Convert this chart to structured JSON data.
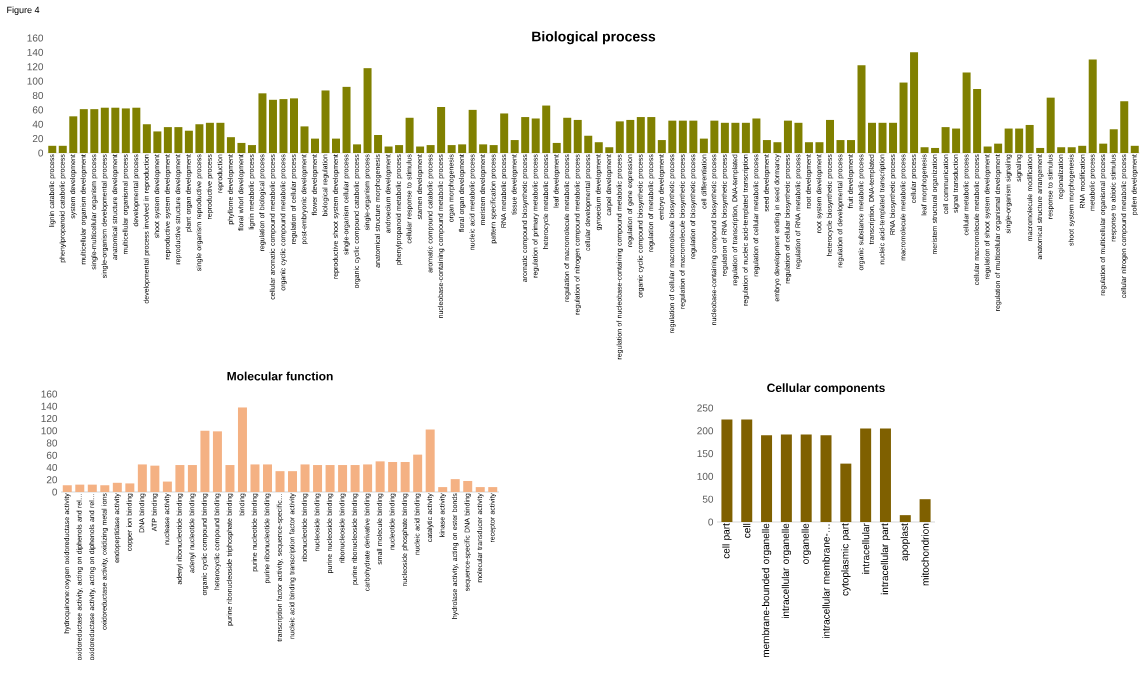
{
  "chart_data": [
    {
      "type": "bar",
      "title": "Biological process",
      "annotations": [
        "Figure 4"
      ],
      "color": "#808000",
      "ylim": [
        0,
        160
      ],
      "yticks": [
        0,
        20,
        40,
        60,
        80,
        100,
        120,
        140,
        160
      ],
      "categories": [
        "lignin catabolic process",
        "phenylpropanoid catabolic process",
        "system development",
        "multicellular organism development",
        "single-multicellular organism process",
        "single-organism developmental process",
        "anatomical structure development",
        "multicellular organismal process",
        "developmental process",
        "developmental process involved in reproduction",
        "shoot system development",
        "reproductive system development",
        "reproductive structure development",
        "plant organ development",
        "single organism reproductive process",
        "reproductive process",
        "reproduction",
        "phyllome development",
        "floral whorl development",
        "lignin metabolic process",
        "regulation of biological process",
        "cellular aromatic compound metabolic process",
        "organic cyclic compound metabolic process",
        "regulation of cellular process",
        "post-embryonic development",
        "flower development",
        "biological regulation",
        "reproductive shoot system development",
        "single-organism cellular process",
        "organic cyclic compound catabolic process",
        "single-organism process",
        "anatomical structure morphogenesis",
        "androecium development",
        "phenylpropanoid metabolic process",
        "cellular response to stimulus",
        "stamen development",
        "aromatic compound catabolic process",
        "nucleobase-containing compound metabolic process",
        "organ morphogenesis",
        "floral organ development",
        "nucleic acid metabolic process",
        "meristem development",
        "pattern specification process",
        "RNA metabolic process",
        "tissue development",
        "aromatic compound biosynthetic process",
        "regulation of primary metabolic process",
        "heterocycle metabolic process",
        "leaf development",
        "regulation of macromolecule metabolic process",
        "regulation of nitrogen compound metabolic process",
        "cellular developmental process",
        "gynoecium development",
        "carpel development",
        "regulation of nucleobase-containing compound metabolic process",
        "regulation of gene expression",
        "organic cyclic compound biosynthetic process",
        "regulation of metabolic process",
        "embryo development",
        "regulation of cellular macromolecule biosynthetic process",
        "regulation of macromolecule biosynthetic process",
        "regulation of biosynthetic process",
        "cell differentiation",
        "nucleobase-containing compound biosynthetic process",
        "regulation of RNA biosynthetic process",
        "regulation of transcription, DNA-templated",
        "regulation of nucleic acid-templated transcription",
        "regulation of cellular metabolic process",
        "seed development",
        "embryo development ending in seed dormancy",
        "regulation of cellular biosynthetic process",
        "regulation of RNA metabolic process",
        "root development",
        "root system development",
        "heterocycle biosynthetic process",
        "regulation of developmental process",
        "fruit development",
        "organic substance metabolic process",
        "transcription, DNA-templated",
        "nucleic acid-templated transcription",
        "RNA biosynthetic process",
        "macromolecule metabolic process",
        "cellular process",
        "leaf morphogenesis",
        "meristem structural organization",
        "cell communication",
        "signal transduction",
        "cellular metabolic process",
        "cellular macromolecule metabolic process",
        "regulation of shoot system development",
        "regulation of multicellular organismal development",
        "single-organism signaling",
        "signaling",
        "macromolecule modification",
        "anatomical structure arrangement",
        "response to stimulus",
        "regionalization",
        "shoot system morphogenesis",
        "RNA modification",
        "metabolic process",
        "regulation of multicellular organismal process",
        "response to abiotic stimulus",
        "cellular nitrogen compound metabolic process",
        "pollen development"
      ],
      "values": [
        10,
        10,
        51,
        61,
        61,
        63,
        63,
        62,
        63,
        40,
        30,
        36,
        36,
        31,
        40,
        42,
        42,
        22,
        14,
        11,
        83,
        74,
        75,
        76,
        37,
        20,
        87,
        20,
        92,
        12,
        118,
        25,
        9,
        11,
        49,
        9,
        11,
        64,
        11,
        12,
        60,
        12,
        11,
        55,
        18,
        50,
        48,
        66,
        14,
        49,
        46,
        24,
        15,
        8,
        44,
        46,
        50,
        50,
        18,
        45,
        45,
        45,
        20,
        45,
        42,
        42,
        42,
        48,
        18,
        15,
        45,
        42,
        15,
        15,
        46,
        18,
        18,
        122,
        42,
        42,
        42,
        98,
        140,
        8,
        7,
        36,
        34,
        112,
        89,
        9,
        13,
        34,
        34,
        39,
        7,
        77,
        8,
        8,
        10,
        130,
        13,
        33,
        72,
        10
      ]
    },
    {
      "type": "bar",
      "title": "Molecular function",
      "color": "#f4b183",
      "ylim": [
        0,
        160
      ],
      "yticks": [
        0,
        20,
        40,
        60,
        80,
        100,
        120,
        140,
        160
      ],
      "categories": [
        "hydroquinone:oxygen oxidoreductase activity",
        "oxidoreductase activity, acting on diphenols and rel…",
        "oxidoreductase activity, acting on diphenols and rel…",
        "oxidoreductase activity, oxidizing metal ions",
        "endopeptidase activity",
        "copper ion binding",
        "DNA binding",
        "ATP binding",
        "nuclease activity",
        "adenyl ribonucleotide binding",
        "adenyl nucleotide binding",
        "organic cyclic compound binding",
        "heterocyclic compound binding",
        "purine ribonucleoside triphosphate binding",
        "binding",
        "purine nucleotide binding",
        "purine ribonucleotide binding",
        "transcription factor activity, sequence-specific…",
        "nucleic acid binding transcription factor activity",
        "ribonucleotide binding",
        "nucleoside binding",
        "purine nucleoside binding",
        "ribonucleoside binding",
        "purine ribonucleoside binding",
        "carbohydrate derivative binding",
        "small molecule binding",
        "nucleotide binding",
        "nucleoside phosphate binding",
        "nucleic acid binding",
        "catalytic activity",
        "kinase activity",
        "hydrolase activity, acting on ester bonds",
        "sequence-specific DNA binding",
        "molecular transducer activity",
        "receptor activity"
      ],
      "values": [
        11,
        12,
        12,
        11,
        15,
        14,
        45,
        43,
        17,
        44,
        44,
        100,
        99,
        44,
        138,
        45,
        45,
        34,
        34,
        45,
        44,
        44,
        44,
        44,
        45,
        50,
        49,
        49,
        61,
        102,
        8,
        21,
        18,
        8,
        8
      ]
    },
    {
      "type": "bar",
      "title": "Cellular components",
      "color": "#7f6000",
      "ylim": [
        0,
        250
      ],
      "yticks": [
        0,
        50,
        100,
        150,
        200,
        250
      ],
      "categories": [
        "cell part",
        "cell",
        "membrane-bounded organelle",
        "intracellular organelle",
        "organelle",
        "intracellular membrane-…",
        "cytoplasmic part",
        "intracellular",
        "intracellular part",
        "apoplast",
        "mitochondrion"
      ],
      "values": [
        225,
        225,
        190,
        192,
        192,
        190,
        128,
        205,
        205,
        15,
        50
      ]
    }
  ]
}
